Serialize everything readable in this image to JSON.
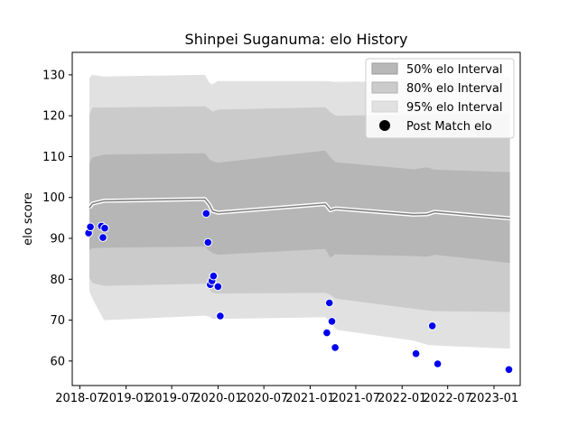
{
  "chart_data": {
    "type": "line",
    "title": "Shinpei Suganuma: elo History",
    "xlabel": "",
    "ylabel": "elo score",
    "x_ticks": [
      "2018-07",
      "2019-01",
      "2019-07",
      "2020-01",
      "2020-07",
      "2021-01",
      "2021-07",
      "2022-01",
      "2022-07",
      "2023-01"
    ],
    "y_ticks": [
      60,
      70,
      80,
      90,
      100,
      110,
      120,
      130
    ],
    "xlim": [
      "2018-06-01",
      "2023-04-15"
    ],
    "ylim": [
      54,
      135.5
    ],
    "grid": false,
    "legend_position": "top-right",
    "legend": [
      "50% elo Interval",
      "80% elo Interval",
      "95% elo Interval",
      "Post Match elo"
    ],
    "colors": {
      "band_50": "#a6a6a6",
      "band_80": "#bfbfbf",
      "band_95": "#e1e1e1",
      "mean_line": "#808080",
      "point_fill": "#0000ee",
      "point_edge": "#ffffff"
    },
    "dates": [
      "2018-08-08",
      "2018-08-20",
      "2018-10-05",
      "2019-11-10",
      "2019-11-28",
      "2019-12-10",
      "2020-01-01",
      "2021-03-02",
      "2021-03-22",
      "2021-04-10",
      "2021-04-18",
      "2022-02-15",
      "2022-04-10",
      "2022-05-10",
      "2023-03-05"
    ],
    "series": [
      {
        "name": "Mean elo",
        "values": [
          97.5,
          98.5,
          99.2,
          99.6,
          98.2,
          96.7,
          96.3,
          98.4,
          96.9,
          97.3,
          97.3,
          95.8,
          95.9,
          96.5,
          94.9
        ]
      },
      {
        "name": "50% elo Interval",
        "lower": [
          87.2,
          87.6,
          87.7,
          88.0,
          86.9,
          86.4,
          86.0,
          87.4,
          85.2,
          86.2,
          86.1,
          85.7,
          85.5,
          86.0,
          84.0
        ],
        "upper": [
          108.4,
          109.8,
          110.5,
          110.8,
          109.3,
          108.9,
          108.5,
          111.5,
          109.8,
          108.7,
          108.6,
          106.9,
          107.4,
          106.8,
          106.2
        ]
      },
      {
        "name": "80% elo Interval",
        "lower": [
          80.3,
          79.1,
          78.4,
          78.9,
          77.5,
          76.7,
          76.5,
          76.7,
          76.2,
          75.3,
          75.2,
          72.8,
          72.4,
          72.2,
          72.0
        ]
      },
      {
        "name": "80% elo Interval (upper)",
        "upper": [
          120.2,
          122.0,
          122.0,
          122.3,
          121.6,
          121.0,
          121.5,
          122.1,
          120.9,
          120.1,
          120.0,
          120.3,
          120.4,
          120.5,
          120.5
        ]
      },
      {
        "name": "95% elo Interval",
        "lower": [
          77.0,
          75.3,
          70.0,
          71.1,
          70.8,
          70.3,
          70.3,
          70.7,
          69.5,
          68.0,
          67.6,
          65.0,
          64.0,
          63.8,
          63.0
        ],
        "upper": [
          129.3,
          130.0,
          129.6,
          130.0,
          128.0,
          127.7,
          128.5,
          128.5,
          128.4,
          128.3,
          128.3,
          128.4,
          128.5,
          129.0,
          129.5
        ]
      },
      {
        "name": "Post Match elo",
        "points": [
          {
            "x": "2018-08-05",
            "y": 91.3
          },
          {
            "x": "2018-08-12",
            "y": 92.8
          },
          {
            "x": "2018-09-25",
            "y": 93.0
          },
          {
            "x": "2018-10-01",
            "y": 90.2
          },
          {
            "x": "2018-10-08",
            "y": 92.5
          },
          {
            "x": "2019-11-15",
            "y": 96.1
          },
          {
            "x": "2019-11-22",
            "y": 89.0
          },
          {
            "x": "2019-12-01",
            "y": 78.7
          },
          {
            "x": "2019-12-08",
            "y": 79.6
          },
          {
            "x": "2019-12-14",
            "y": 80.8
          },
          {
            "x": "2020-01-01",
            "y": 78.2
          },
          {
            "x": "2020-01-10",
            "y": 71.0
          },
          {
            "x": "2021-03-08",
            "y": 66.9
          },
          {
            "x": "2021-03-18",
            "y": 74.2
          },
          {
            "x": "2021-03-28",
            "y": 69.7
          },
          {
            "x": "2021-04-10",
            "y": 63.3
          },
          {
            "x": "2022-02-25",
            "y": 61.8
          },
          {
            "x": "2022-05-01",
            "y": 68.6
          },
          {
            "x": "2022-05-22",
            "y": 59.3
          },
          {
            "x": "2023-03-01",
            "y": 57.9
          }
        ]
      }
    ]
  }
}
